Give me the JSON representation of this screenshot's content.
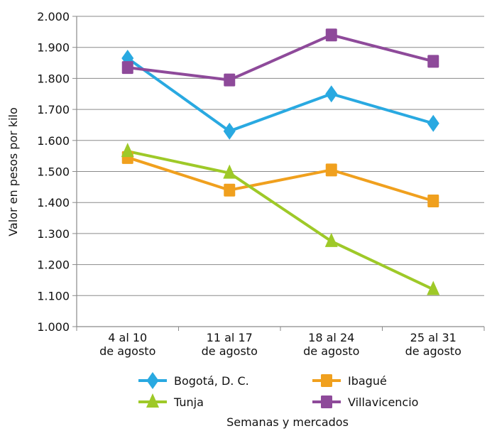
{
  "chart_data": {
    "type": "line",
    "xlabel": "Semanas y mercados",
    "ylabel": "Valor en pesos por kilo",
    "ylim": [
      1000,
      2000
    ],
    "y_ticks": [
      {
        "value": 1000,
        "label": "1.000"
      },
      {
        "value": 1100,
        "label": "1.100"
      },
      {
        "value": 1200,
        "label": "1.200"
      },
      {
        "value": 1300,
        "label": "1.300"
      },
      {
        "value": 1400,
        "label": "1.400"
      },
      {
        "value": 1500,
        "label": "1.500"
      },
      {
        "value": 1600,
        "label": "1.600"
      },
      {
        "value": 1700,
        "label": "1.700"
      },
      {
        "value": 1800,
        "label": "1.800"
      },
      {
        "value": 1900,
        "label": "1.900"
      },
      {
        "value": 2000,
        "label": "2.000"
      }
    ],
    "categories": [
      [
        "4 al 10",
        "de agosto"
      ],
      [
        "11 al 17",
        "de agosto"
      ],
      [
        "18 al 24",
        "de agosto"
      ],
      [
        "25 al 31",
        "de agosto"
      ]
    ],
    "grid": true,
    "legend_position": "bottom",
    "series": [
      {
        "name": "Bogotá, D. C.",
        "values": [
          1865,
          1630,
          1750,
          1655
        ],
        "color": "#29a9e1",
        "marker": "diamond"
      },
      {
        "name": "Ibagué",
        "values": [
          1545,
          1440,
          1505,
          1405
        ],
        "color": "#f0a01e",
        "marker": "square"
      },
      {
        "name": "Tunja",
        "values": [
          1565,
          1495,
          1275,
          1120
        ],
        "color": "#9ec928",
        "marker": "triangle"
      },
      {
        "name": "Villavicencio",
        "values": [
          1835,
          1795,
          1940,
          1855
        ],
        "color": "#8e4a9a",
        "marker": "square"
      }
    ]
  }
}
